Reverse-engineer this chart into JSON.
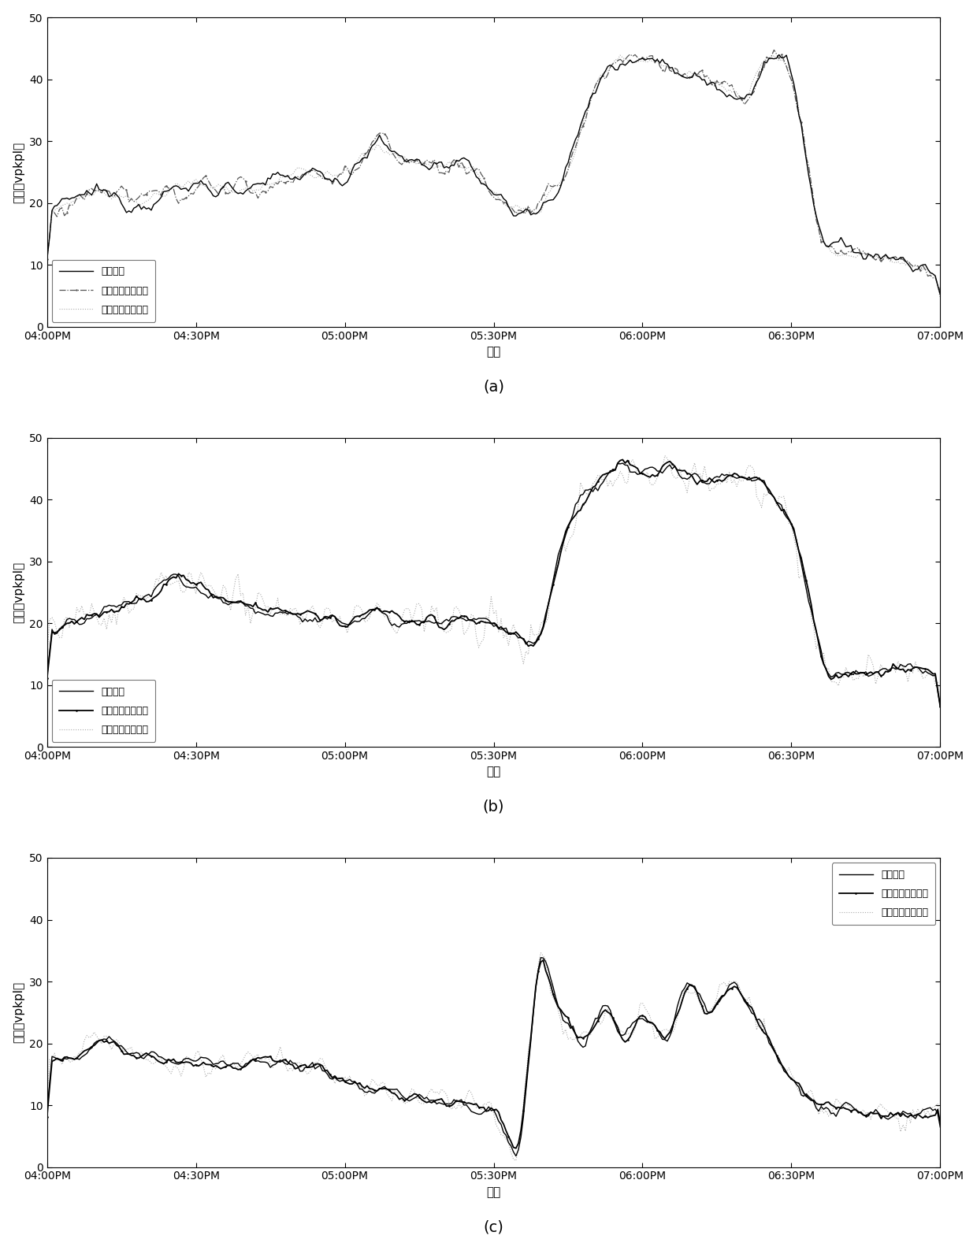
{
  "xlabel": "时间",
  "ylabel": "密度（vpkpl）",
  "xlim_hours": [
    16.0,
    19.0
  ],
  "ylim": [
    0,
    50
  ],
  "yticks": [
    0,
    10,
    20,
    30,
    40,
    50
  ],
  "xtick_labels": [
    "04:00PM",
    "04:30PM",
    "05:00PM",
    "05:30PM",
    "06:00PM",
    "06:30PM",
    "07:00PM"
  ],
  "legend_labels": [
    "原始数据",
    "在线标定填补数据",
    "离线标定填补数据"
  ],
  "subplot_labels": [
    "(a)",
    "(b)",
    "(c)"
  ],
  "background_color": "#ffffff",
  "title_fontsize": 14,
  "label_fontsize": 11,
  "tick_fontsize": 10
}
